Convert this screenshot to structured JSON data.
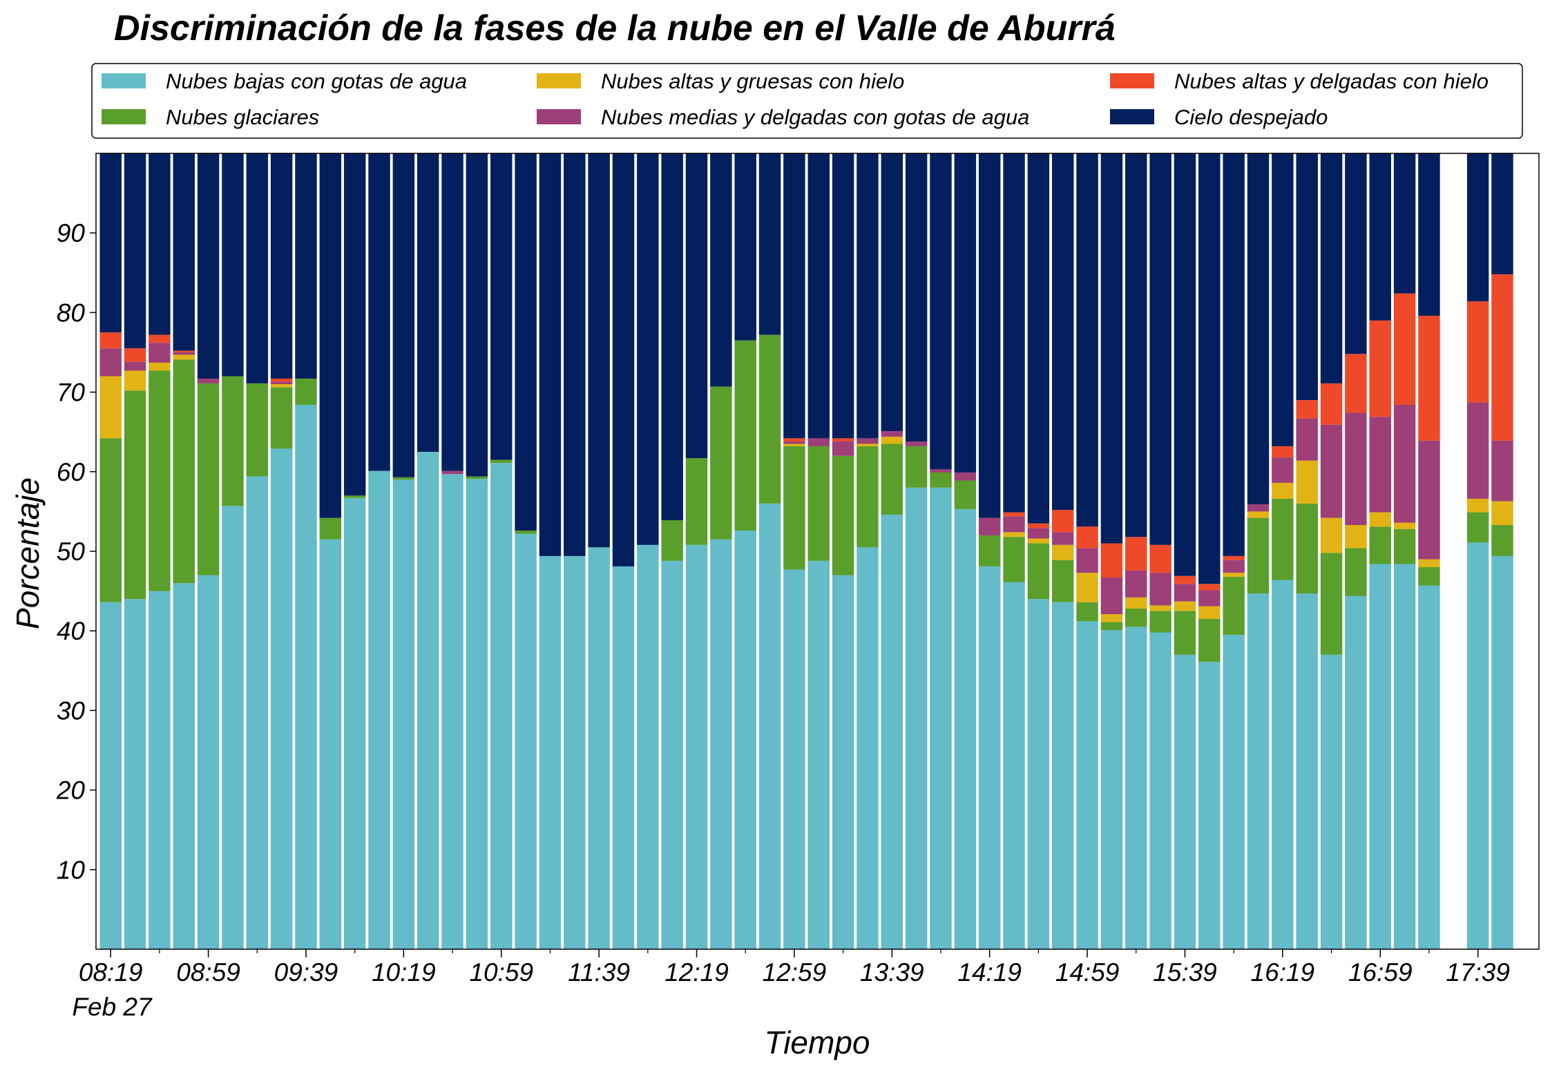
{
  "chart_data": {
    "type": "stacked_bar",
    "title": "Discriminación de la fases de la nube en el Valle de Aburrá",
    "x_label": "Tiempo",
    "y_label": "Porcentaje",
    "date_label": "Feb 27",
    "categories": [
      "08:19",
      null,
      null,
      null,
      "08:59",
      null,
      null,
      null,
      "09:39",
      null,
      null,
      null,
      "10:19",
      null,
      null,
      null,
      "10:59",
      null,
      null,
      null,
      "11:39",
      null,
      null,
      null,
      "12:19",
      null,
      null,
      null,
      "12:59",
      null,
      null,
      null,
      "13:39",
      null,
      null,
      null,
      "14:19",
      null,
      null,
      null,
      "14:59",
      null,
      null,
      null,
      "15:39",
      null,
      null,
      null,
      "16:19",
      null,
      null,
      null,
      "16:59",
      null,
      null,
      null,
      "17:39",
      null
    ],
    "ylim": [
      0,
      100
    ],
    "yticks": [
      10,
      20,
      30,
      40,
      50,
      60,
      70,
      80,
      90
    ],
    "legend": "top",
    "series": [
      {
        "name": "Nubes bajas con gotas de agua",
        "color": "#63bcc8",
        "values": [
          43.6,
          44.0,
          45.0,
          46.0,
          47.0,
          55.7,
          59.4,
          62.9,
          68.4,
          51.5,
          56.7,
          60.1,
          59.0,
          62.5,
          59.7,
          59.1,
          61.1,
          52.2,
          49.4,
          49.4,
          50.5,
          48.1,
          50.8,
          48.8,
          50.8,
          51.5,
          52.6,
          56.0,
          47.7,
          48.8,
          47.0,
          50.5,
          54.6,
          58.0,
          58.0,
          55.3,
          48.1,
          46.1,
          44.0,
          43.6,
          41.2,
          40.1,
          40.5,
          39.8,
          37.0,
          36.1,
          39.5,
          44.7,
          46.4,
          44.7,
          37.0,
          44.4,
          48.4,
          48.4,
          45.7,
          null,
          51.1,
          49.4
        ]
      },
      {
        "name": "Nubes glaciares",
        "color": "#5a9e2c",
        "values": [
          20.6,
          26.2,
          27.7,
          28.1,
          24.1,
          16.3,
          11.7,
          7.7,
          3.3,
          2.7,
          0.3,
          0,
          0.3,
          0,
          0,
          0.3,
          0.4,
          0.4,
          0,
          0,
          0,
          0,
          0,
          5.1,
          10.9,
          19.2,
          23.9,
          21.2,
          15.5,
          14.4,
          15.0,
          12.7,
          8.9,
          5.2,
          1.9,
          3.6,
          3.9,
          5.7,
          7.0,
          5.3,
          2.4,
          1.0,
          2.3,
          2.7,
          5.5,
          5.4,
          7.3,
          9.5,
          10.2,
          11.3,
          12.8,
          6.0,
          4.7,
          4.4,
          2.3,
          null,
          3.8,
          3.9
        ]
      },
      {
        "name": "Nubes altas y gruesas con hielo",
        "color": "#e2b315",
        "values": [
          7.8,
          2.5,
          1.0,
          0.6,
          0,
          0,
          0,
          0.4,
          0,
          0,
          0,
          0,
          0,
          0,
          0,
          0,
          0,
          0,
          0,
          0,
          0,
          0,
          0,
          0,
          0,
          0,
          0,
          0,
          0.3,
          0,
          0,
          0.3,
          0.9,
          0,
          0,
          0,
          0,
          0.6,
          0.6,
          1.9,
          3.7,
          1.0,
          1.4,
          0.7,
          1.2,
          1.6,
          0.5,
          0.8,
          2.0,
          5.4,
          4.4,
          2.9,
          1.8,
          0.8,
          1.0,
          null,
          1.7,
          3.0
        ]
      },
      {
        "name": "Nubes medias y delgadas con gotas de agua",
        "color": "#9e3f78",
        "values": [
          3.5,
          1.1,
          2.5,
          0.3,
          0.6,
          0,
          0,
          0.3,
          0,
          0,
          0,
          0,
          0,
          0,
          0.4,
          0,
          0,
          0,
          0,
          0,
          0,
          0,
          0,
          0,
          0,
          0,
          0,
          0,
          0.3,
          1.0,
          1.8,
          0.7,
          0.7,
          0.6,
          0.4,
          1.0,
          2.2,
          2.0,
          1.3,
          1.6,
          3.1,
          4.6,
          3.4,
          4.1,
          2.2,
          2.0,
          1.6,
          0.9,
          3.2,
          5.3,
          11.7,
          14.1,
          12.0,
          14.8,
          14.9,
          null,
          12.1,
          7.6
        ]
      },
      {
        "name": "Nubes altas y delgadas con hielo",
        "color": "#ee4a2a",
        "values": [
          2.0,
          1.7,
          1.0,
          0.2,
          0,
          0,
          0,
          0.4,
          0,
          0,
          0,
          0,
          0,
          0,
          0,
          0,
          0,
          0,
          0,
          0,
          0,
          0,
          0,
          0,
          0,
          0,
          0,
          0,
          0.4,
          0,
          0.4,
          0,
          0,
          0,
          0,
          0,
          0,
          0.5,
          0.6,
          2.8,
          2.7,
          4.3,
          4.2,
          3.5,
          1.0,
          0.8,
          0.5,
          0,
          1.4,
          2.3,
          5.2,
          7.4,
          12.1,
          14.0,
          15.7,
          null,
          12.7,
          20.9
        ]
      },
      {
        "name": "Cielo despejado",
        "color": "#031f5e",
        "values": [
          22.5,
          24.5,
          22.8,
          24.8,
          28.3,
          28.0,
          28.9,
          28.3,
          28.3,
          45.8,
          43.0,
          39.9,
          40.7,
          37.5,
          39.9,
          40.6,
          38.5,
          47.4,
          50.6,
          50.6,
          49.5,
          51.9,
          49.2,
          46.1,
          38.3,
          29.3,
          23.5,
          22.8,
          35.8,
          35.8,
          35.8,
          35.8,
          34.9,
          36.2,
          39.7,
          40.1,
          45.8,
          45.1,
          46.5,
          44.8,
          46.9,
          49.0,
          48.2,
          49.2,
          53.1,
          54.1,
          50.6,
          44.1,
          36.8,
          31.0,
          28.9,
          25.2,
          21.0,
          17.6,
          20.4,
          null,
          18.6,
          15.2
        ]
      }
    ]
  }
}
